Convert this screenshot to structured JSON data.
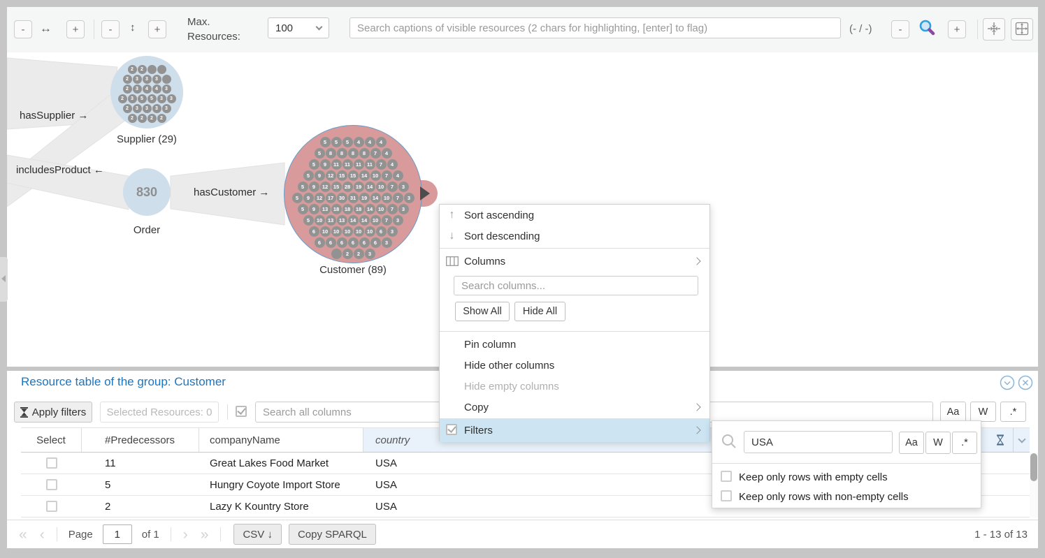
{
  "toolbar": {
    "zoom_out": "-",
    "zoom_in": "+",
    "h_arrow": "↔",
    "v_arrow": "↕",
    "max_resources_label_1": "Max.",
    "max_resources_label_2": "Resources:",
    "max_resources_value": "100",
    "search_placeholder": "Search captions of visible resources (2 chars for highlighting, [enter] to flag)",
    "match_counter": "(- / -)"
  },
  "graph": {
    "supplier": {
      "label": "Supplier (29)",
      "dots": [
        [
          "2",
          "2",
          "",
          ""
        ],
        [
          "2",
          "3",
          "3",
          "3",
          ""
        ],
        [
          "2",
          "3",
          "4",
          "4",
          "3"
        ],
        [
          "2",
          "3",
          "5",
          "5",
          "3",
          "3"
        ],
        [
          "2",
          "3",
          "3",
          "3",
          "3"
        ],
        [
          "2",
          "2",
          "2",
          "2"
        ]
      ]
    },
    "order": {
      "label": "Order",
      "value": "830"
    },
    "customer": {
      "label": "Customer (89)",
      "dots": [
        [
          "5",
          "5",
          "5",
          "4",
          "4",
          "4"
        ],
        [
          "5",
          "8",
          "8",
          "8",
          "8",
          "7",
          "4"
        ],
        [
          "5",
          "9",
          "11",
          "11",
          "11",
          "11",
          "7",
          "4"
        ],
        [
          "5",
          "9",
          "12",
          "15",
          "15",
          "14",
          "10",
          "7",
          "4"
        ],
        [
          "5",
          "9",
          "12",
          "15",
          "28",
          "19",
          "14",
          "10",
          "7",
          "3"
        ],
        [
          "5",
          "9",
          "12",
          "17",
          "30",
          "31",
          "19",
          "14",
          "10",
          "7",
          "3"
        ],
        [
          "5",
          "9",
          "13",
          "18",
          "18",
          "18",
          "14",
          "10",
          "7",
          "3"
        ],
        [
          "5",
          "10",
          "13",
          "13",
          "14",
          "14",
          "10",
          "7",
          "3"
        ],
        [
          "6",
          "10",
          "10",
          "10",
          "10",
          "10",
          "6",
          "3"
        ],
        [
          "6",
          "6",
          "6",
          "6",
          "6",
          "6",
          "3"
        ],
        [
          "",
          "2",
          "2",
          "3"
        ]
      ]
    },
    "edge_labels": {
      "has_supplier": "hasSupplier →",
      "includes_product": "includesProduct ←",
      "has_customer": "hasCustomer →"
    }
  },
  "context_menu": {
    "sort_ascending": "Sort ascending",
    "sort_descending": "Sort descending",
    "sort_asc_icon": "↑",
    "sort_desc_icon": "↓",
    "columns": "Columns",
    "search_columns_placeholder": "Search columns...",
    "show_all": "Show All",
    "hide_all": "Hide All",
    "pin_column": "Pin column",
    "hide_other_columns": "Hide other columns",
    "hide_empty_columns": "Hide empty columns",
    "copy": "Copy",
    "filters": "Filters"
  },
  "filter_popup": {
    "search_value": "USA",
    "keep_empty": "Keep only rows with empty cells",
    "keep_non_empty": "Keep only rows with non-empty cells"
  },
  "regex_buttons": {
    "case_sensitive": "Aa",
    "whole_word": "W",
    "regex": ".*"
  },
  "table": {
    "title": "Resource table of the group: Customer",
    "apply_filters": "Apply filters",
    "selected_resources": "Selected Resources: 0",
    "search_placeholder": "Search all columns",
    "columns": {
      "select": "Select",
      "predecessors": "#Predecessors",
      "company": "companyName",
      "country": "country"
    },
    "rows": [
      {
        "predecessors": "11",
        "company": "Great Lakes Food Market",
        "country": "USA"
      },
      {
        "predecessors": "5",
        "company": "Hungry Coyote Import Store",
        "country": "USA"
      },
      {
        "predecessors": "2",
        "company": "Lazy K Kountry Store",
        "country": "USA"
      }
    ]
  },
  "pagination": {
    "first": "«",
    "prev": "‹",
    "page_label": "Page",
    "page_value": "1",
    "of_label": "of 1",
    "next": "›",
    "last": "»",
    "csv": "CSV ↓",
    "copy_sparql": "Copy SPARQL",
    "range": "1 - 13 of 13"
  },
  "colors": {
    "node_blue": "#cfdeeb",
    "node_pink": "#d89a9b",
    "node_border_blue": "#699bc8",
    "accent_blue": "#1b76c0",
    "menu_highlight": "#cde4f3",
    "header_highlight": "#e9f2fb",
    "edge_gray": "#ebebeb",
    "dot_gray": "#929292"
  }
}
